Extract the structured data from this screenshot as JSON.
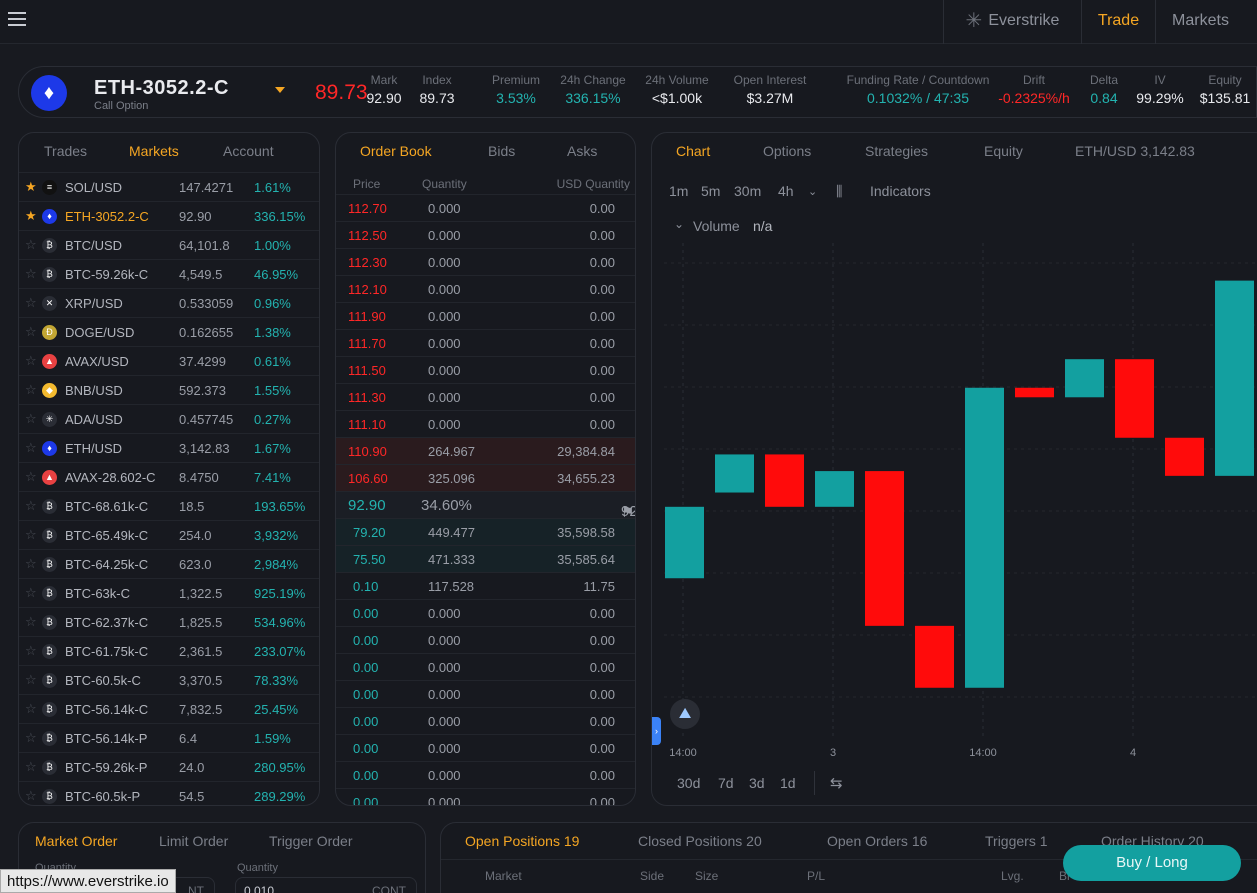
{
  "nav": {
    "brand": "Everstrike",
    "trade": "Trade",
    "markets": "Markets"
  },
  "header": {
    "symbol": "ETH-3052.2-C",
    "subtitle": "Call Option",
    "last_price": "89.73",
    "stats": [
      {
        "label": "Mark",
        "value": "92.90",
        "color": "#e9eaee"
      },
      {
        "label": "Index",
        "value": "89.73",
        "color": "#e9eaee"
      },
      {
        "label": "Premium",
        "value": "3.53%",
        "color": "#23b3b0"
      },
      {
        "label": "24h Change",
        "value": "336.15%",
        "color": "#23b3b0"
      },
      {
        "label": "24h Volume",
        "value": "<$1.00k",
        "color": "#e9eaee"
      },
      {
        "label": "Open Interest",
        "value": "$3.27M",
        "color": "#e9eaee"
      },
      {
        "label": "Funding Rate / Countdown",
        "value": "0.1032% / 47:35",
        "color": "#23b3b0"
      },
      {
        "label": "Drift",
        "value": "-0.2325%/h",
        "color": "#ff2727"
      },
      {
        "label": "Delta",
        "value": "0.84",
        "color": "#23b3b0"
      },
      {
        "label": "IV",
        "value": "99.29%",
        "color": "#e9eaee"
      },
      {
        "label": "Equity",
        "value": "$135.81",
        "color": "#e9eaee"
      }
    ]
  },
  "markets_panel": {
    "tabs": [
      "Trades",
      "Markets",
      "Account"
    ],
    "active_tab": "Markets",
    "rows": [
      {
        "name": "SOL/USD",
        "price": "147.4271",
        "change": "1.61%",
        "fav": true,
        "icon": "solana-icon",
        "glyph": "≡",
        "coin_color": "#111111"
      },
      {
        "name": "ETH-3052.2-C",
        "price": "92.90",
        "change": "336.15%",
        "fav": true,
        "selected": true,
        "icon": "ethereum-icon",
        "glyph": "♦",
        "coin_color": "#1d39e8"
      },
      {
        "name": "BTC/USD",
        "price": "64,101.8",
        "change": "1.00%",
        "fav": false,
        "icon": "bitcoin-icon",
        "glyph": "₿",
        "coin_color": "#2a2d35"
      },
      {
        "name": "BTC-59.26k-C",
        "price": "4,549.5",
        "change": "46.95%",
        "fav": false,
        "icon": "bitcoin-icon",
        "glyph": "₿",
        "coin_color": "#2a2d35"
      },
      {
        "name": "XRP/USD",
        "price": "0.533059",
        "change": "0.96%",
        "fav": false,
        "icon": "xrp-icon",
        "glyph": "✕",
        "coin_color": "#2a2d35"
      },
      {
        "name": "DOGE/USD",
        "price": "0.162655",
        "change": "1.38%",
        "fav": false,
        "icon": "dogecoin-icon",
        "glyph": "Ð",
        "coin_color": "#c2a633"
      },
      {
        "name": "AVAX/USD",
        "price": "37.4299",
        "change": "0.61%",
        "fav": false,
        "icon": "avalanche-icon",
        "glyph": "▲",
        "coin_color": "#e84142"
      },
      {
        "name": "BNB/USD",
        "price": "592.373",
        "change": "1.55%",
        "fav": false,
        "icon": "bnb-icon",
        "glyph": "◆",
        "coin_color": "#f3ba2f"
      },
      {
        "name": "ADA/USD",
        "price": "0.457745",
        "change": "0.27%",
        "fav": false,
        "icon": "cardano-icon",
        "glyph": "✳",
        "coin_color": "#2a2d35"
      },
      {
        "name": "ETH/USD",
        "price": "3,142.83",
        "change": "1.67%",
        "fav": false,
        "icon": "ethereum-icon",
        "glyph": "♦",
        "coin_color": "#1d39e8"
      },
      {
        "name": "AVAX-28.602-C",
        "price": "8.4750",
        "change": "7.41%",
        "fav": false,
        "icon": "avalanche-icon",
        "glyph": "▲",
        "coin_color": "#e84142"
      },
      {
        "name": "BTC-68.61k-C",
        "price": "18.5",
        "change": "193.65%",
        "fav": false,
        "icon": "bitcoin-icon",
        "glyph": "₿",
        "coin_color": "#2a2d35"
      },
      {
        "name": "BTC-65.49k-C",
        "price": "254.0",
        "change": "3,932%",
        "fav": false,
        "icon": "bitcoin-icon",
        "glyph": "₿",
        "coin_color": "#2a2d35"
      },
      {
        "name": "BTC-64.25k-C",
        "price": "623.0",
        "change": "2,984%",
        "fav": false,
        "icon": "bitcoin-icon",
        "glyph": "₿",
        "coin_color": "#2a2d35"
      },
      {
        "name": "BTC-63k-C",
        "price": "1,322.5",
        "change": "925.19%",
        "fav": false,
        "icon": "bitcoin-icon",
        "glyph": "₿",
        "coin_color": "#2a2d35"
      },
      {
        "name": "BTC-62.37k-C",
        "price": "1,825.5",
        "change": "534.96%",
        "fav": false,
        "icon": "bitcoin-icon",
        "glyph": "₿",
        "coin_color": "#2a2d35"
      },
      {
        "name": "BTC-61.75k-C",
        "price": "2,361.5",
        "change": "233.07%",
        "fav": false,
        "icon": "bitcoin-icon",
        "glyph": "₿",
        "coin_color": "#2a2d35"
      },
      {
        "name": "BTC-60.5k-C",
        "price": "3,370.5",
        "change": "78.33%",
        "fav": false,
        "icon": "bitcoin-icon",
        "glyph": "₿",
        "coin_color": "#2a2d35"
      },
      {
        "name": "BTC-56.14k-C",
        "price": "7,832.5",
        "change": "25.45%",
        "fav": false,
        "icon": "bitcoin-icon",
        "glyph": "₿",
        "coin_color": "#2a2d35"
      },
      {
        "name": "BTC-56.14k-P",
        "price": "6.4",
        "change": "1.59%",
        "fav": false,
        "icon": "bitcoin-icon",
        "glyph": "₿",
        "coin_color": "#2a2d35"
      },
      {
        "name": "BTC-59.26k-P",
        "price": "24.0",
        "change": "280.95%",
        "fav": false,
        "icon": "bitcoin-icon",
        "glyph": "₿",
        "coin_color": "#2a2d35"
      },
      {
        "name": "BTC-60.5k-P",
        "price": "54.5",
        "change": "289.29%",
        "fav": false,
        "icon": "bitcoin-icon",
        "glyph": "₿",
        "coin_color": "#2a2d35"
      }
    ]
  },
  "order_book": {
    "tabs": [
      "Order Book",
      "Bids",
      "Asks"
    ],
    "active_tab": "Order Book",
    "columns": [
      "Price",
      "Quantity",
      "USD Quantity"
    ],
    "asks": [
      {
        "price": "112.70",
        "qty": "0.000",
        "usd": "0.00"
      },
      {
        "price": "112.50",
        "qty": "0.000",
        "usd": "0.00"
      },
      {
        "price": "112.30",
        "qty": "0.000",
        "usd": "0.00"
      },
      {
        "price": "112.10",
        "qty": "0.000",
        "usd": "0.00"
      },
      {
        "price": "111.90",
        "qty": "0.000",
        "usd": "0.00"
      },
      {
        "price": "111.70",
        "qty": "0.000",
        "usd": "0.00"
      },
      {
        "price": "111.50",
        "qty": "0.000",
        "usd": "0.00"
      },
      {
        "price": "111.30",
        "qty": "0.000",
        "usd": "0.00"
      },
      {
        "price": "111.10",
        "qty": "0.000",
        "usd": "0.00"
      },
      {
        "price": "110.90",
        "qty": "264.967",
        "usd": "29,384.84"
      },
      {
        "price": "106.60",
        "qty": "325.096",
        "usd": "34,655.23"
      }
    ],
    "mid": {
      "price": "92.90",
      "spread": "34.60%",
      "mark": "92.90"
    },
    "bids": [
      {
        "price": "79.20",
        "qty": "449.477",
        "usd": "35,598.58"
      },
      {
        "price": "75.50",
        "qty": "471.333",
        "usd": "35,585.64"
      },
      {
        "price": "0.10",
        "qty": "117.528",
        "usd": "11.75"
      },
      {
        "price": "0.00",
        "qty": "0.000",
        "usd": "0.00"
      },
      {
        "price": "0.00",
        "qty": "0.000",
        "usd": "0.00"
      },
      {
        "price": "0.00",
        "qty": "0.000",
        "usd": "0.00"
      },
      {
        "price": "0.00",
        "qty": "0.000",
        "usd": "0.00"
      },
      {
        "price": "0.00",
        "qty": "0.000",
        "usd": "0.00"
      },
      {
        "price": "0.00",
        "qty": "0.000",
        "usd": "0.00"
      },
      {
        "price": "0.00",
        "qty": "0.000",
        "usd": "0.00"
      },
      {
        "price": "0.00",
        "qty": "0.000",
        "usd": "0.00"
      }
    ]
  },
  "chart_panel": {
    "tabs": [
      "Chart",
      "Options",
      "Strategies",
      "Equity",
      "ETH/USD 3,142.83"
    ],
    "active_tab": "Chart",
    "timeframes": [
      "1m",
      "5m",
      "30m",
      "4h"
    ],
    "active_timeframe": "4h",
    "indicators_label": "Indicators",
    "volume_label": "Volume",
    "volume_value": "n/a",
    "x_ticks": [
      "14:00",
      "3",
      "14:00",
      "4"
    ],
    "ranges": [
      "30d",
      "7d",
      "3d",
      "1d"
    ],
    "up_color": "#13a0a0",
    "down_color": "#ff0b0b"
  },
  "chart_data": {
    "type": "candlestick",
    "x": [
      "14:00",
      "",
      "",
      "3",
      "",
      "",
      "14:00",
      "",
      "",
      "4",
      "",
      ""
    ],
    "candles": [
      {
        "open": 0.1,
        "close": 0.4,
        "dir": "up"
      },
      {
        "open": 0.46,
        "close": 0.62,
        "dir": "up"
      },
      {
        "open": 0.62,
        "close": 0.4,
        "dir": "down"
      },
      {
        "open": 0.4,
        "close": 0.55,
        "dir": "up"
      },
      {
        "open": 0.55,
        "close": -0.1,
        "dir": "down"
      },
      {
        "open": -0.1,
        "close": -0.36,
        "dir": "down"
      },
      {
        "open": -0.36,
        "close": 0.9,
        "dir": "up"
      },
      {
        "open": 0.9,
        "close": 0.86,
        "dir": "down"
      },
      {
        "open": 0.86,
        "close": 1.02,
        "dir": "up"
      },
      {
        "open": 1.02,
        "close": 0.69,
        "dir": "down"
      },
      {
        "open": 0.69,
        "close": 0.53,
        "dir": "down"
      },
      {
        "open": 0.53,
        "close": 1.35,
        "dir": "up"
      }
    ]
  },
  "order_panel": {
    "tabs": [
      "Market Order",
      "Limit Order",
      "Trigger Order"
    ],
    "active_tab": "Market Order",
    "field1_label": "Quantity",
    "field2_label": "Quantity",
    "field1_unit": "NT",
    "field2_value": "0.010",
    "field2_unit": "CONT"
  },
  "positions_panel": {
    "tabs": [
      "Open Positions 19",
      "Closed Positions 20",
      "Open Orders 16",
      "Triggers 1",
      "Order History 20"
    ],
    "active_tab": "Open Positions 19",
    "columns": [
      "Market",
      "Side",
      "Size",
      "P/L",
      "Lvg.",
      "Bl"
    ]
  },
  "buy_button": "Buy / Long",
  "status_url": "https://www.everstrike.io"
}
